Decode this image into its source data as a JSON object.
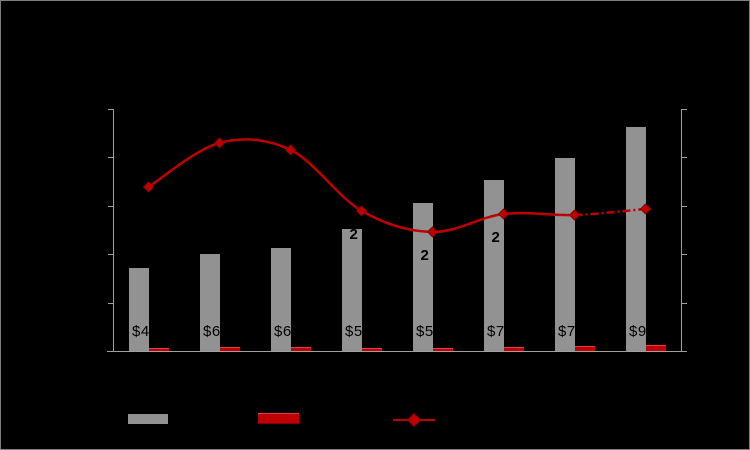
{
  "chart_data": {
    "type": "combo",
    "note_scale": "axis tick labels are not visible in the image; values are percent of plot height",
    "categories": [
      "",
      "",
      "",
      "",
      "",
      "",
      "",
      ""
    ],
    "axes": {
      "left_tick_count": 6,
      "right_tick_count": 6,
      "tick_labels_visible": false,
      "axis_color": "#a0a0a0"
    },
    "series": [
      {
        "name": "gray-bars",
        "type": "bar",
        "color": "#929292",
        "values_pct": [
          34.3,
          40.1,
          42.6,
          50.4,
          61.2,
          70.7,
          79.8,
          92.6
        ],
        "base_label_fragments": [
          "$4",
          "$6",
          "$6",
          "$5",
          "$5",
          "$7",
          "$7",
          "$9"
        ]
      },
      {
        "name": "red-bars",
        "type": "bar",
        "color": "#c00000",
        "values_pct": [
          1.2,
          1.8,
          1.8,
          1.2,
          1.1,
          1.7,
          2.2,
          2.5
        ]
      },
      {
        "name": "red-line",
        "type": "line",
        "color": "#c00000",
        "marker": "diamond",
        "dash_dot_from_index": 6,
        "values_pct": [
          67.8,
          86.0,
          83.1,
          57.9,
          49.2,
          56.6,
          56.2,
          58.7
        ],
        "point_label_fragments": [
          {
            "index": 3,
            "text": "2"
          },
          {
            "index": 4,
            "text": "2"
          },
          {
            "index": 5,
            "text": "2"
          }
        ]
      }
    ]
  },
  "legend": {
    "items": [
      {
        "swatch": "gray-bar",
        "label": ""
      },
      {
        "swatch": "red-bar",
        "label": ""
      },
      {
        "swatch": "red-line-diamond",
        "label": ""
      }
    ]
  },
  "colors": {
    "background": "#000000",
    "bar_gray": "#929292",
    "series_red": "#c00000",
    "axis_gray": "#a0a0a0",
    "label_black": "#000000",
    "frame_border": "#7f7f7f"
  }
}
